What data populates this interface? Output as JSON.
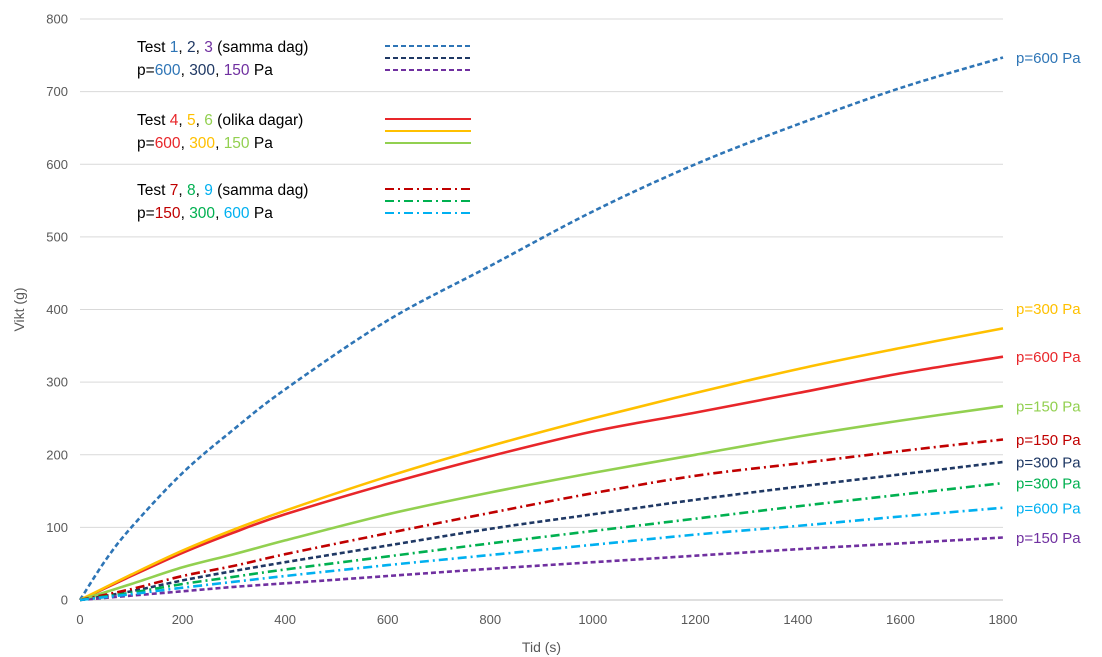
{
  "chart_data": {
    "type": "line",
    "xlabel": "Tid (s)",
    "ylabel": "Vikt (g)",
    "xlim": [
      0,
      1800
    ],
    "ylim": [
      0,
      800
    ],
    "xticks": [
      "0",
      "200",
      "400",
      "600",
      "800",
      "1000",
      "1200",
      "1400",
      "1600",
      "1800"
    ],
    "yticks": [
      "0",
      "100",
      "200",
      "300",
      "400",
      "500",
      "600",
      "700",
      "800"
    ],
    "grid": "horizontal",
    "legend_position": "top-left",
    "colors": {
      "blue": "#2E75B6",
      "navy": "#1F3864",
      "purple": "#7030A0",
      "red": "#E8262A",
      "orange": "#FFC000",
      "green": "#92D050",
      "darkred": "#C00000",
      "emerald": "#00B050",
      "cyan": "#00B0F0"
    },
    "legend_groups": [
      {
        "line1": [
          {
            "text": "Test ",
            "color": "#000000"
          },
          {
            "text": "1",
            "color": "#2E75B6"
          },
          {
            "text": ", ",
            "color": "#000000"
          },
          {
            "text": "2",
            "color": "#1F3864"
          },
          {
            "text": ", ",
            "color": "#000000"
          },
          {
            "text": "3",
            "color": "#7030A0"
          },
          {
            "text": " (samma dag)",
            "color": "#000000"
          }
        ],
        "line2": [
          {
            "text": "p=",
            "color": "#000000"
          },
          {
            "text": "600",
            "color": "#2E75B6"
          },
          {
            "text": ", ",
            "color": "#000000"
          },
          {
            "text": "300",
            "color": "#1F3864"
          },
          {
            "text": ", ",
            "color": "#000000"
          },
          {
            "text": "150",
            "color": "#7030A0"
          },
          {
            "text": " Pa",
            "color": "#000000"
          }
        ],
        "series": [
          0,
          1,
          2
        ]
      },
      {
        "line1": [
          {
            "text": "Test ",
            "color": "#000000"
          },
          {
            "text": "4",
            "color": "#E8262A"
          },
          {
            "text": ", ",
            "color": "#000000"
          },
          {
            "text": "5",
            "color": "#FFC000"
          },
          {
            "text": ", ",
            "color": "#000000"
          },
          {
            "text": "6",
            "color": "#92D050"
          },
          {
            "text": " (olika dagar)",
            "color": "#000000"
          }
        ],
        "line2": [
          {
            "text": "p=",
            "color": "#000000"
          },
          {
            "text": "600",
            "color": "#E8262A"
          },
          {
            "text": ", ",
            "color": "#000000"
          },
          {
            "text": "300",
            "color": "#FFC000"
          },
          {
            "text": ", ",
            "color": "#000000"
          },
          {
            "text": "150",
            "color": "#92D050"
          },
          {
            "text": " Pa",
            "color": "#000000"
          }
        ],
        "series": [
          3,
          4,
          5
        ]
      },
      {
        "line1": [
          {
            "text": "Test ",
            "color": "#000000"
          },
          {
            "text": "7",
            "color": "#C00000"
          },
          {
            "text": ", ",
            "color": "#000000"
          },
          {
            "text": "8",
            "color": "#00B050"
          },
          {
            "text": ", ",
            "color": "#000000"
          },
          {
            "text": "9",
            "color": "#00B0F0"
          },
          {
            "text": " (samma dag)",
            "color": "#000000"
          }
        ],
        "line2": [
          {
            "text": "p=",
            "color": "#000000"
          },
          {
            "text": "150",
            "color": "#C00000"
          },
          {
            "text": ", ",
            "color": "#000000"
          },
          {
            "text": "300",
            "color": "#00B050"
          },
          {
            "text": ", ",
            "color": "#000000"
          },
          {
            "text": "600",
            "color": "#00B0F0"
          },
          {
            "text": " Pa",
            "color": "#000000"
          }
        ],
        "series": [
          6,
          7,
          8
        ]
      }
    ],
    "series": [
      {
        "test": "1",
        "label": "p=600 Pa",
        "color": "#2E75B6",
        "dash": "dashed",
        "points": [
          [
            0,
            0
          ],
          [
            50,
            55
          ],
          [
            100,
            100
          ],
          [
            200,
            175
          ],
          [
            300,
            235
          ],
          [
            400,
            290
          ],
          [
            600,
            385
          ],
          [
            800,
            460
          ],
          [
            1000,
            535
          ],
          [
            1200,
            600
          ],
          [
            1400,
            655
          ],
          [
            1600,
            705
          ],
          [
            1800,
            747
          ]
        ]
      },
      {
        "test": "2",
        "label": "p=300 Pa",
        "color": "#1F3864",
        "dash": "dashed",
        "points": [
          [
            0,
            0
          ],
          [
            100,
            12
          ],
          [
            200,
            27
          ],
          [
            300,
            40
          ],
          [
            400,
            52
          ],
          [
            600,
            75
          ],
          [
            800,
            98
          ],
          [
            1000,
            118
          ],
          [
            1200,
            138
          ],
          [
            1400,
            156
          ],
          [
            1600,
            173
          ],
          [
            1800,
            190
          ]
        ]
      },
      {
        "test": "3",
        "label": "p=150 Pa",
        "color": "#7030A0",
        "dash": "dashed",
        "points": [
          [
            0,
            0
          ],
          [
            100,
            6
          ],
          [
            200,
            12
          ],
          [
            300,
            18
          ],
          [
            400,
            23
          ],
          [
            600,
            33
          ],
          [
            800,
            43
          ],
          [
            1000,
            52
          ],
          [
            1200,
            61
          ],
          [
            1400,
            70
          ],
          [
            1600,
            78
          ],
          [
            1800,
            86
          ]
        ]
      },
      {
        "test": "4",
        "label": "p=600 Pa",
        "color": "#E8262A",
        "dash": "solid",
        "points": [
          [
            0,
            0
          ],
          [
            100,
            33
          ],
          [
            200,
            65
          ],
          [
            300,
            93
          ],
          [
            400,
            118
          ],
          [
            600,
            160
          ],
          [
            800,
            198
          ],
          [
            1000,
            232
          ],
          [
            1200,
            258
          ],
          [
            1400,
            285
          ],
          [
            1600,
            312
          ],
          [
            1800,
            335
          ]
        ]
      },
      {
        "test": "5",
        "label": "p=300 Pa",
        "color": "#FFC000",
        "dash": "solid",
        "points": [
          [
            0,
            0
          ],
          [
            100,
            35
          ],
          [
            200,
            68
          ],
          [
            300,
            97
          ],
          [
            400,
            123
          ],
          [
            600,
            170
          ],
          [
            800,
            212
          ],
          [
            1000,
            250
          ],
          [
            1200,
            285
          ],
          [
            1400,
            318
          ],
          [
            1600,
            347
          ],
          [
            1800,
            374
          ]
        ]
      },
      {
        "test": "6",
        "label": "p=150 Pa",
        "color": "#92D050",
        "dash": "solid",
        "points": [
          [
            0,
            0
          ],
          [
            100,
            22
          ],
          [
            200,
            45
          ],
          [
            300,
            63
          ],
          [
            400,
            82
          ],
          [
            600,
            118
          ],
          [
            800,
            148
          ],
          [
            1000,
            175
          ],
          [
            1200,
            200
          ],
          [
            1400,
            225
          ],
          [
            1600,
            247
          ],
          [
            1800,
            267
          ]
        ]
      },
      {
        "test": "7",
        "label": "p=150 Pa",
        "color": "#C00000",
        "dash": "dashdot",
        "points": [
          [
            0,
            0
          ],
          [
            100,
            15
          ],
          [
            200,
            33
          ],
          [
            300,
            47
          ],
          [
            400,
            63
          ],
          [
            600,
            92
          ],
          [
            800,
            120
          ],
          [
            1000,
            147
          ],
          [
            1200,
            171
          ],
          [
            1400,
            188
          ],
          [
            1600,
            205
          ],
          [
            1800,
            221
          ]
        ]
      },
      {
        "test": "8",
        "label": "p=300 Pa",
        "color": "#00B050",
        "dash": "dashdot",
        "points": [
          [
            0,
            0
          ],
          [
            100,
            10
          ],
          [
            200,
            22
          ],
          [
            300,
            32
          ],
          [
            400,
            42
          ],
          [
            600,
            60
          ],
          [
            800,
            78
          ],
          [
            1000,
            95
          ],
          [
            1200,
            112
          ],
          [
            1400,
            129
          ],
          [
            1600,
            145
          ],
          [
            1800,
            161
          ]
        ]
      },
      {
        "test": "9",
        "label": "p=600 Pa",
        "color": "#00B0F0",
        "dash": "dashdot",
        "points": [
          [
            0,
            0
          ],
          [
            100,
            8
          ],
          [
            200,
            17
          ],
          [
            300,
            25
          ],
          [
            400,
            33
          ],
          [
            600,
            48
          ],
          [
            800,
            62
          ],
          [
            1000,
            76
          ],
          [
            1200,
            90
          ],
          [
            1400,
            102
          ],
          [
            1600,
            115
          ],
          [
            1800,
            127
          ]
        ]
      }
    ]
  }
}
